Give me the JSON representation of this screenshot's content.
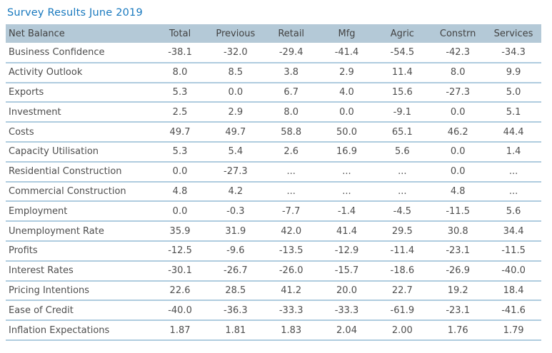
{
  "title": "Survey Results June 2019",
  "colors": {
    "title_blue": "#1778BE",
    "header_bg": "#B4C9D7",
    "row_line": "#AFCCDF",
    "text": "#4E4E4E"
  },
  "chart_data": {
    "type": "table",
    "title": "Survey Results June 2019",
    "columns": [
      "Net Balance",
      "Total",
      "Previous",
      "Retail",
      "Mfg",
      "Agric",
      "Constrn",
      "Services"
    ],
    "rows": [
      {
        "label": "Business Confidence",
        "values": [
          "-38.1",
          "-32.0",
          "-29.4",
          "-41.4",
          "-54.5",
          "-42.3",
          "-34.3"
        ]
      },
      {
        "label": "Activity Outlook",
        "values": [
          "8.0",
          "8.5",
          "3.8",
          "2.9",
          "11.4",
          "8.0",
          "9.9"
        ]
      },
      {
        "label": "Exports",
        "values": [
          "5.3",
          "0.0",
          "6.7",
          "4.0",
          "15.6",
          "-27.3",
          "5.0"
        ]
      },
      {
        "label": "Investment",
        "values": [
          "2.5",
          "2.9",
          "8.0",
          "0.0",
          "-9.1",
          "0.0",
          "5.1"
        ]
      },
      {
        "label": "Costs",
        "values": [
          "49.7",
          "49.7",
          "58.8",
          "50.0",
          "65.1",
          "46.2",
          "44.4"
        ]
      },
      {
        "label": "Capacity Utilisation",
        "values": [
          "5.3",
          "5.4",
          "2.6",
          "16.9",
          "5.6",
          "0.0",
          "1.4"
        ]
      },
      {
        "label": "Residential Construction",
        "values": [
          "0.0",
          "-27.3",
          "...",
          "...",
          "...",
          "0.0",
          "..."
        ]
      },
      {
        "label": "Commercial Construction",
        "values": [
          "4.8",
          "4.2",
          "...",
          "...",
          "...",
          "4.8",
          "..."
        ]
      },
      {
        "label": "Employment",
        "values": [
          "0.0",
          "-0.3",
          "-7.7",
          "-1.4",
          "-4.5",
          "-11.5",
          "5.6"
        ]
      },
      {
        "label": "Unemployment Rate",
        "values": [
          "35.9",
          "31.9",
          "42.0",
          "41.4",
          "29.5",
          "30.8",
          "34.4"
        ]
      },
      {
        "label": "Profits",
        "values": [
          "-12.5",
          "-9.6",
          "-13.5",
          "-12.9",
          "-11.4",
          "-23.1",
          "-11.5"
        ]
      },
      {
        "label": "Interest Rates",
        "values": [
          "-30.1",
          "-26.7",
          "-26.0",
          "-15.7",
          "-18.6",
          "-26.9",
          "-40.0"
        ]
      },
      {
        "label": "Pricing Intentions",
        "values": [
          "22.6",
          "28.5",
          "41.2",
          "20.0",
          "22.7",
          "19.2",
          "18.4"
        ]
      },
      {
        "label": "Ease of Credit",
        "values": [
          "-40.0",
          "-36.3",
          "-33.3",
          "-33.3",
          "-61.9",
          "-23.1",
          "-41.6"
        ]
      },
      {
        "label": "Inflation Expectations",
        "values": [
          "1.87",
          "1.81",
          "1.83",
          "2.04",
          "2.00",
          "1.76",
          "1.79"
        ]
      }
    ],
    "layout": {
      "first_column_align": "left",
      "value_columns_align": "center",
      "grid": "horizontal-lines-only"
    }
  }
}
